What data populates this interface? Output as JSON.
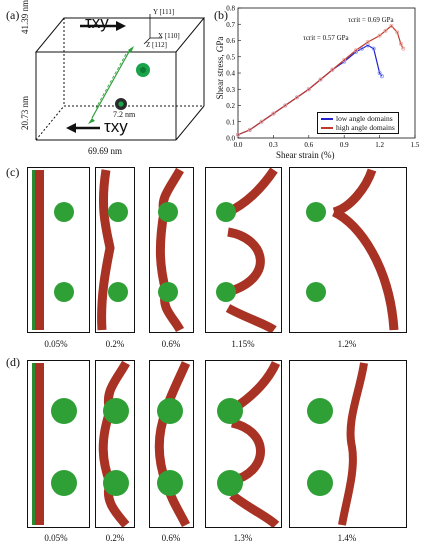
{
  "panel_a": {
    "label": "(a)",
    "dims": {
      "depth": "41.39 nm",
      "height": "20.73 nm",
      "width": "69.69 nm",
      "diameter": "7.2 nm"
    },
    "tau_top": "τxy",
    "tau_bottom": "τxy",
    "axes": {
      "y": "Y [111]",
      "x": "X [110]",
      "z": "Z [112]"
    },
    "colors": {
      "line": "#2e9e3a",
      "precipitate": "#1aa34a",
      "dislocation": "#2d8c3a"
    }
  },
  "panel_b": {
    "label": "(b)",
    "annot_high": "τcrit = 0.69 GPa",
    "annot_low": "τcrit = 0.57 GPa",
    "colors": {
      "low": "#2222cc",
      "low_marker": "#7b8cff",
      "high": "#c0392b",
      "high_marker": "#e8a29a"
    }
  },
  "chart_data": {
    "type": "line",
    "xlabel": "Shear strain (%)",
    "ylabel": "Shear stress, GPa",
    "xlim": [
      0.0,
      1.5
    ],
    "ylim": [
      0.0,
      0.8
    ],
    "xticks": [
      "0.0",
      "0.3",
      "0.6",
      "0.9",
      "1.2",
      "1.5"
    ],
    "yticks": [
      "0.0",
      "0.1",
      "0.2",
      "0.3",
      "0.4",
      "0.5",
      "0.6",
      "0.7",
      "0.8"
    ],
    "legend_position": "bottom-right",
    "series": [
      {
        "name": "low angle domains",
        "x": [
          0.0,
          0.1,
          0.2,
          0.3,
          0.4,
          0.5,
          0.6,
          0.7,
          0.8,
          0.9,
          1.0,
          1.05,
          1.1,
          1.15,
          1.2,
          1.22
        ],
        "y": [
          0.02,
          0.05,
          0.1,
          0.15,
          0.2,
          0.25,
          0.3,
          0.36,
          0.42,
          0.47,
          0.53,
          0.55,
          0.57,
          0.55,
          0.4,
          0.38
        ]
      },
      {
        "name": "high angle domains",
        "x": [
          0.0,
          0.1,
          0.2,
          0.3,
          0.4,
          0.5,
          0.6,
          0.7,
          0.8,
          0.9,
          1.0,
          1.1,
          1.2,
          1.25,
          1.3,
          1.35,
          1.38,
          1.4
        ],
        "y": [
          0.02,
          0.05,
          0.1,
          0.15,
          0.2,
          0.25,
          0.3,
          0.36,
          0.42,
          0.48,
          0.54,
          0.59,
          0.63,
          0.66,
          0.69,
          0.65,
          0.58,
          0.55
        ]
      }
    ]
  },
  "panel_c": {
    "label": "(c)",
    "strains": [
      "0.05%",
      "0.2%",
      "0.6%",
      "1.15%",
      "1.2%"
    ]
  },
  "panel_d": {
    "label": "(d)",
    "strains": [
      "0.05%",
      "0.2%",
      "0.6%",
      "1.3%",
      "1.4%"
    ]
  }
}
